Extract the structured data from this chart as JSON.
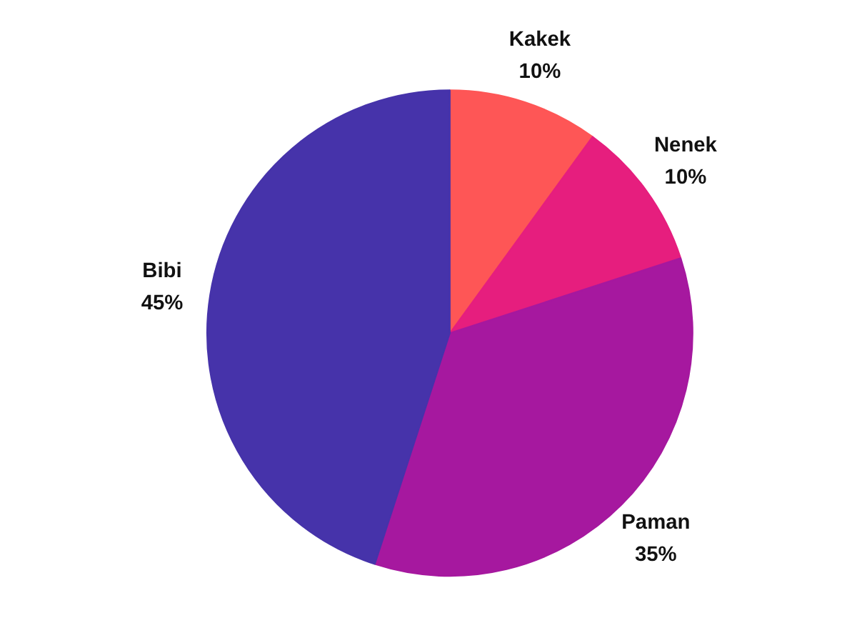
{
  "chart_data": {
    "type": "pie",
    "categories": [
      "Kakek",
      "Nenek",
      "Paman",
      "Bibi"
    ],
    "values": [
      10,
      10,
      35,
      45
    ],
    "colors": [
      "#fe5656",
      "#e61e7e",
      "#a6189f",
      "#4633aa"
    ],
    "value_labels": [
      "10%",
      "10%",
      "35%",
      "45%"
    ]
  }
}
